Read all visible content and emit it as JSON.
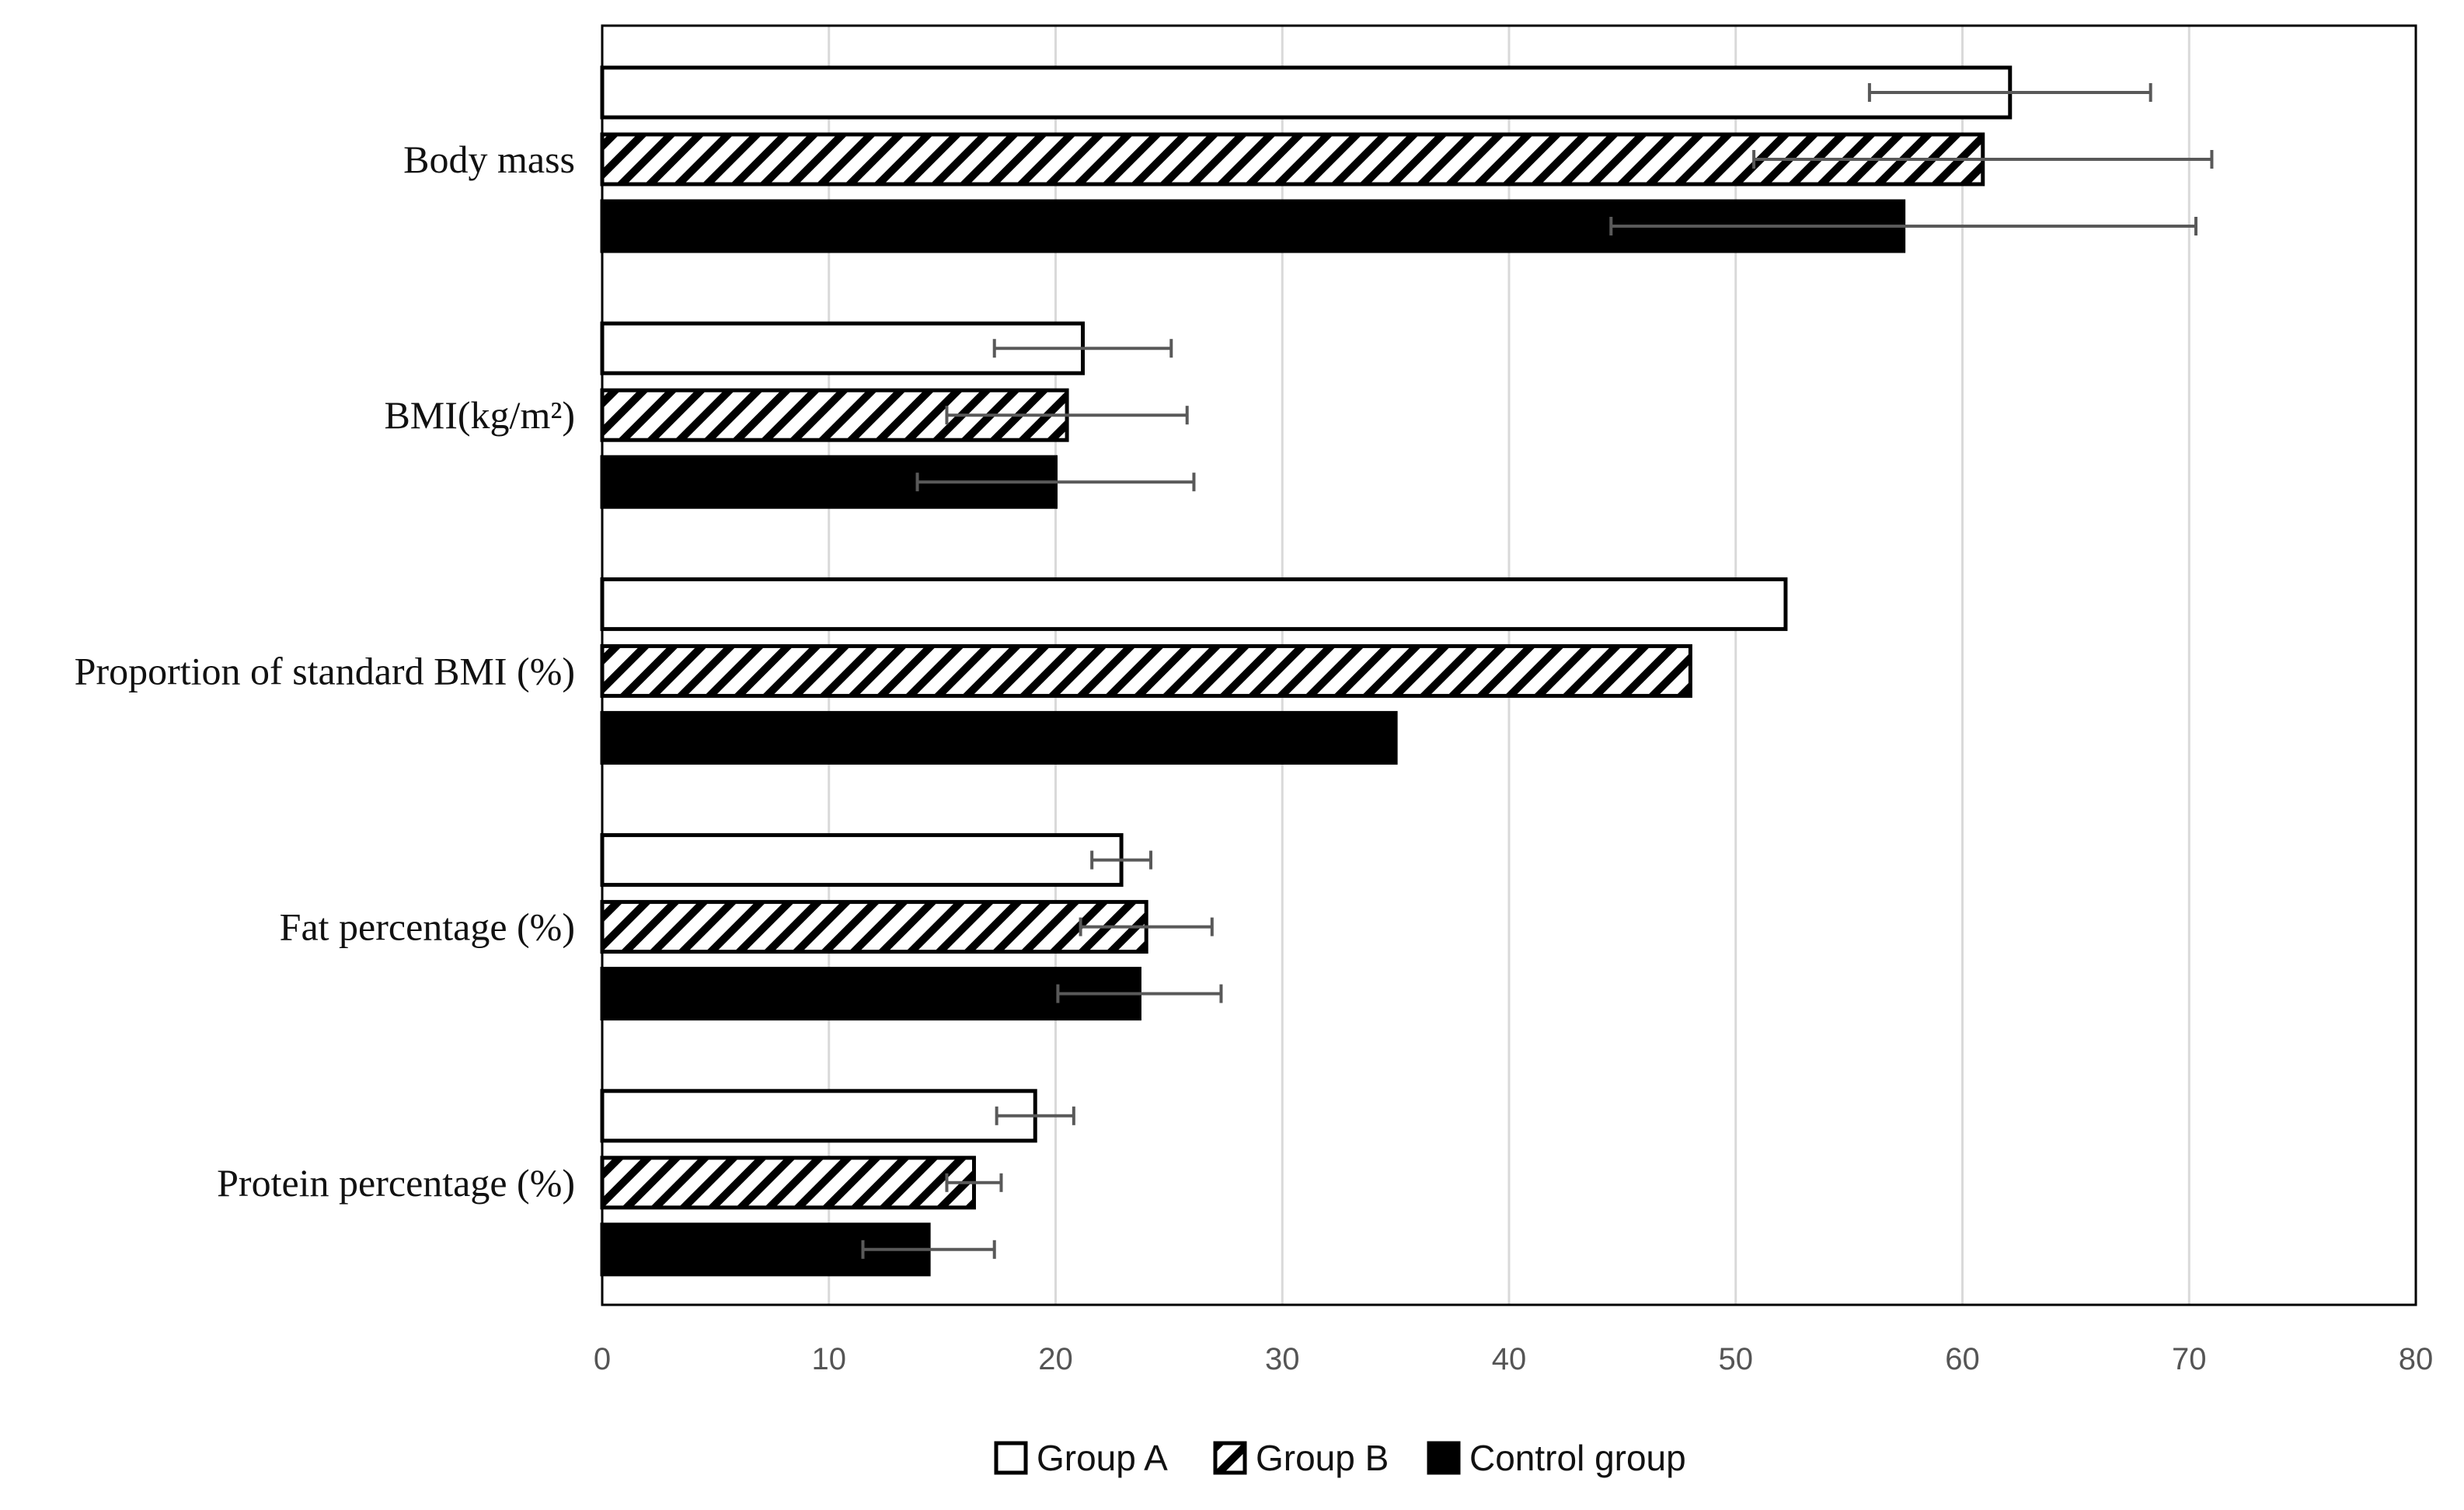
{
  "chart_data": {
    "type": "bar",
    "orientation": "horizontal",
    "categories": [
      "Body mass",
      "BMI(kg/m²)",
      "Proportion of standard BMI (%)",
      "Fat percentage (%)",
      "Protein percentage (%)"
    ],
    "series": [
      {
        "name": "Group A",
        "pattern": "white",
        "values": [
          62.1,
          21.2,
          52.2,
          22.9,
          19.1
        ],
        "error": [
          6.2,
          3.9,
          null,
          1.3,
          1.7
        ]
      },
      {
        "name": "Group B",
        "pattern": "hatched",
        "values": [
          60.9,
          20.5,
          48.0,
          24.0,
          16.4
        ],
        "error": [
          10.1,
          5.3,
          null,
          2.9,
          1.2
        ]
      },
      {
        "name": "Control group",
        "pattern": "black",
        "values": [
          57.4,
          20.0,
          35.0,
          23.7,
          14.4
        ],
        "error": [
          12.9,
          6.1,
          null,
          3.6,
          2.9
        ]
      }
    ],
    "xlim": [
      0,
      80
    ],
    "xticks": [
      "0",
      "10",
      "20",
      "30",
      "40",
      "50",
      "60",
      "70",
      "80"
    ],
    "grid": "vertical",
    "legend": "bottom-center",
    "title": "",
    "xlabel": "",
    "ylabel": ""
  },
  "colors": {
    "group_a_fill": "#ffffff",
    "group_b_hatch": "#000000",
    "control_fill": "#000000",
    "outline": "#000000",
    "gridline": "#d9d9d9",
    "error_bar": "#595959"
  }
}
